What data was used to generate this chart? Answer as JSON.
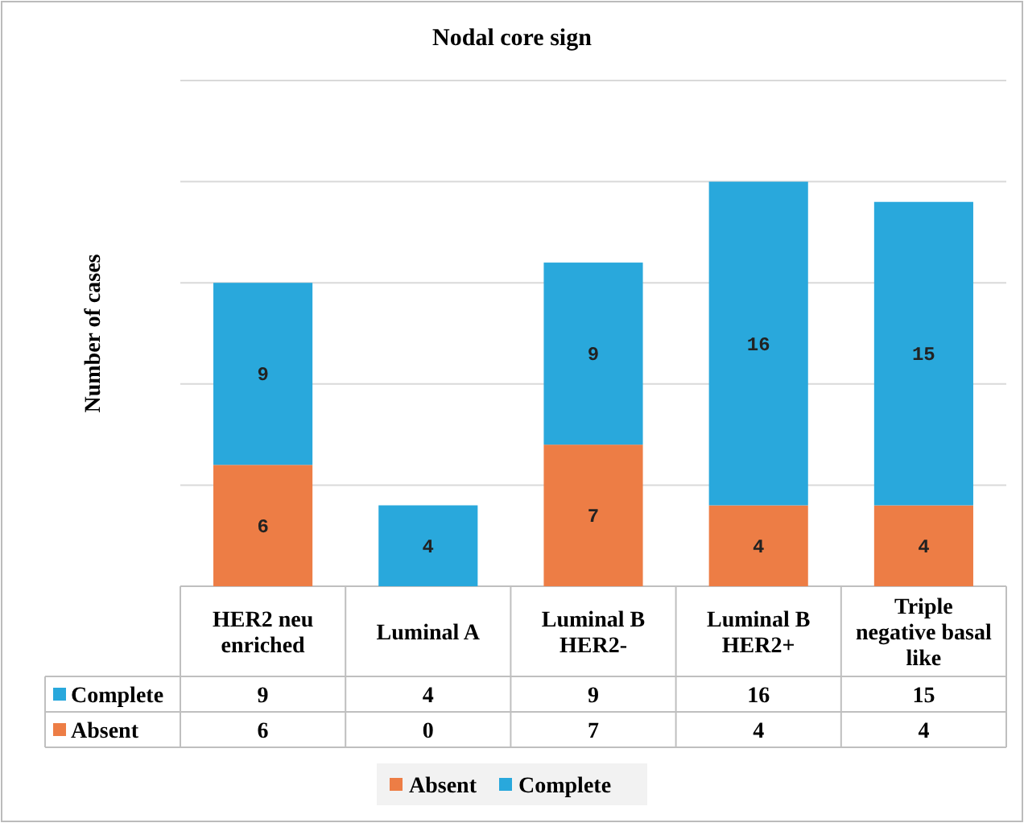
{
  "chart_data": {
    "type": "bar",
    "title": "Nodal core sign",
    "ylabel": "Number of cases",
    "stacked": true,
    "categories": [
      "HER2 neu enriched",
      "Luminal A",
      "Luminal B HER2-",
      "Luminal B HER2+",
      "Triple negative basal like"
    ],
    "series": [
      {
        "name": "Absent",
        "color": "#ed7d45",
        "values": [
          6,
          0,
          7,
          4,
          4
        ]
      },
      {
        "name": "Complete",
        "color": "#29a8dc",
        "values": [
          9,
          4,
          9,
          16,
          15
        ]
      }
    ],
    "ylim": [
      0,
      25
    ],
    "yticks": [
      {
        "value": 0,
        "label": null
      },
      {
        "value": 5,
        "label": null
      },
      {
        "value": 10,
        "label": null
      },
      {
        "value": 15,
        "label": null
      },
      {
        "value": 20,
        "label": null
      },
      {
        "value": 25,
        "label": null
      }
    ],
    "annotations": [
      "6",
      "9",
      "4",
      "7",
      "9",
      "4",
      "16",
      "4",
      "15"
    ],
    "grid": "y",
    "data_labels": true,
    "legend": "bottom"
  }
}
